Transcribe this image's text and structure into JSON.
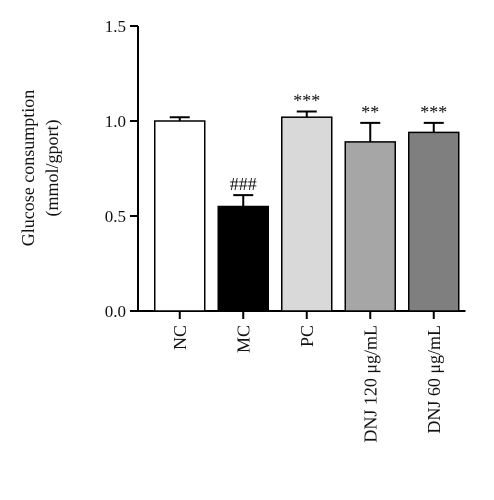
{
  "chart_data": {
    "type": "bar",
    "ylabel_line1": "Glucose consumption",
    "ylabel_line2": "(mmol/gport)",
    "ylim": [
      0,
      1.5
    ],
    "yticks": [
      "0.0",
      "0.5",
      "1.0",
      "1.5"
    ],
    "ytick_values": [
      0.0,
      0.5,
      1.0,
      1.5
    ],
    "categories": [
      "NC",
      "MC",
      "PC",
      "DNJ 120 μg/mL",
      "DNJ 60 μg/mL"
    ],
    "values": [
      1.0,
      0.55,
      1.02,
      0.89,
      0.94
    ],
    "errors": [
      0.02,
      0.06,
      0.03,
      0.1,
      0.05
    ],
    "annotations": [
      "",
      "###",
      "***",
      "**",
      "***"
    ],
    "colors": [
      "#ffffff",
      "#000000",
      "#d9d9d9",
      "#a6a6a6",
      "#7f7f7f"
    ],
    "grid": false
  }
}
